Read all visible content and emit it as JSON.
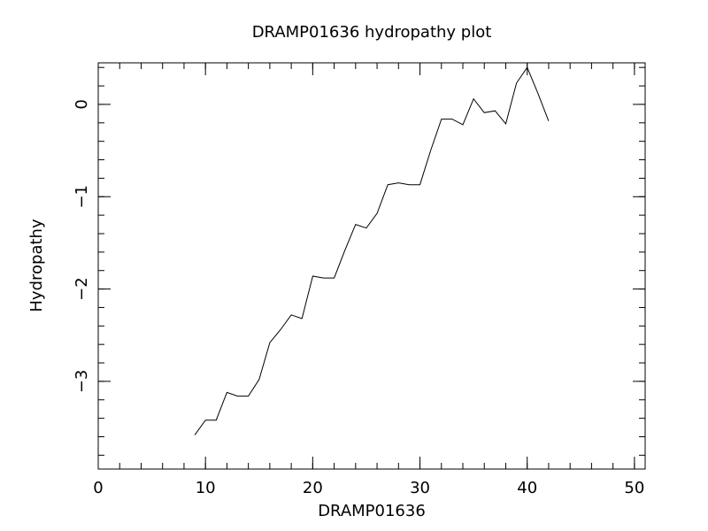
{
  "chart_data": {
    "type": "line",
    "title": "DRAMP01636 hydropathy plot",
    "xlabel": "DRAMP01636",
    "ylabel": "Hydropathy",
    "xlim": [
      0,
      51
    ],
    "ylim": [
      -3.95,
      0.45
    ],
    "x_ticks": [
      0,
      10,
      20,
      30,
      40,
      50
    ],
    "x_tick_labels": [
      "0",
      "10",
      "20",
      "30",
      "40",
      "50"
    ],
    "y_ticks": [
      -3,
      -2,
      -1,
      0
    ],
    "y_tick_labels": [
      "−3",
      "−2",
      "−1",
      "0"
    ],
    "x_minor_step": 2,
    "y_minor_step": 0.2,
    "grid": false,
    "series": [
      {
        "x": [
          9,
          10,
          11,
          12,
          13,
          14,
          15,
          16,
          17,
          18,
          19,
          20,
          21,
          22,
          23,
          24,
          25,
          26,
          27,
          28,
          29,
          30,
          31,
          32,
          33,
          34,
          35,
          36,
          37,
          38,
          39,
          40,
          41,
          42
        ],
        "y": [
          -3.58,
          -3.42,
          -3.42,
          -3.12,
          -3.16,
          -3.16,
          -2.98,
          -2.58,
          -2.44,
          -2.28,
          -2.32,
          -1.86,
          -1.88,
          -1.88,
          -1.58,
          -1.3,
          -1.34,
          -1.18,
          -0.87,
          -0.85,
          -0.87,
          -0.87,
          -0.5,
          -0.16,
          -0.16,
          -0.22,
          0.06,
          -0.09,
          -0.07,
          -0.21,
          0.23,
          0.4,
          0.12,
          -0.18
        ]
      }
    ]
  }
}
